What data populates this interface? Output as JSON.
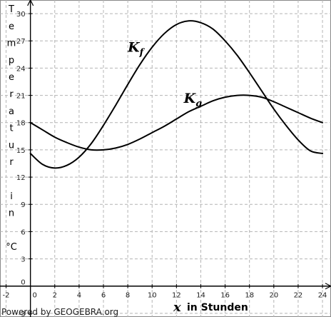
{
  "chart_data": {
    "type": "line",
    "x_range": [
      -2.5,
      24.7
    ],
    "y_range": [
      -3.4,
      31.5
    ],
    "x_ticks": [
      -2,
      0,
      2,
      4,
      6,
      8,
      10,
      12,
      14,
      16,
      18,
      20,
      22,
      24
    ],
    "y_ticks": [
      -3,
      0,
      3,
      6,
      9,
      12,
      15,
      18,
      21,
      24,
      27,
      30
    ],
    "grid": true,
    "ylabel_letters": [
      "T",
      "e",
      "m",
      "p",
      "e",
      "r",
      "a",
      "t",
      "u",
      "r",
      "",
      "i",
      "n",
      "",
      "°C"
    ],
    "xlabel_var": "x",
    "xlabel_text": "in Stunden",
    "series": [
      {
        "name": "K",
        "subscript": "f",
        "color": "#000000",
        "x": [
          0,
          1,
          2,
          3,
          4,
          5,
          6,
          7,
          8,
          9,
          10,
          11,
          12,
          13,
          14,
          15,
          16,
          17,
          18,
          19,
          20,
          21,
          22,
          23,
          24
        ],
        "y": [
          14.6,
          13.4,
          13.0,
          13.3,
          14.2,
          15.7,
          17.7,
          19.9,
          22.2,
          24.4,
          26.3,
          27.8,
          28.8,
          29.2,
          29.0,
          28.3,
          27.0,
          25.4,
          23.5,
          21.5,
          19.5,
          17.7,
          16.1,
          14.9,
          14.6
        ]
      },
      {
        "name": "K",
        "subscript": "g",
        "color": "#000000",
        "x": [
          0,
          1,
          2,
          3,
          4,
          5,
          6,
          7,
          8,
          9,
          10,
          11,
          12,
          13,
          14,
          15,
          16,
          17,
          18,
          19,
          20,
          21,
          22,
          23,
          24
        ],
        "y": [
          18.0,
          17.2,
          16.4,
          15.8,
          15.3,
          15.0,
          15.0,
          15.2,
          15.6,
          16.2,
          16.9,
          17.6,
          18.4,
          19.2,
          19.8,
          20.4,
          20.8,
          21.0,
          21.0,
          20.8,
          20.3,
          19.7,
          19.1,
          18.5,
          18.0
        ]
      }
    ],
    "annotations": [
      {
        "text": "K",
        "subscript": "f",
        "x": 8.0,
        "y": 25.8
      },
      {
        "text": "K",
        "subscript": "g",
        "x": 12.6,
        "y": 20.2
      }
    ]
  },
  "footer": {
    "text": "Powered by GEOGEBRA.org"
  }
}
